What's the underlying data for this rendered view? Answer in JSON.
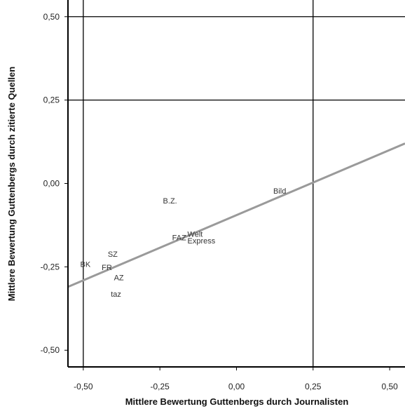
{
  "chart_data": {
    "type": "scatter",
    "title": "",
    "xlabel": "Mittlere Bewertung Guttenbergs durch Journalisten",
    "ylabel": "Mittlere Bewertung Guttenbergs durch zitierte Quellen",
    "xlim": [
      -0.55,
      0.55
    ],
    "ylim": [
      -0.55,
      0.55
    ],
    "x_ticks": [
      -0.5,
      -0.25,
      0.0,
      0.25,
      0.5
    ],
    "x_tick_labels": [
      "-0,50",
      "-0,25",
      "0,00",
      "0,25",
      "0,50"
    ],
    "y_ticks": [
      -0.5,
      -0.25,
      0.0,
      0.25,
      0.5
    ],
    "y_tick_labels": [
      "-0,50",
      "-0,25",
      "0,00",
      "0,25",
      "0,50"
    ],
    "reference_lines": {
      "x": [
        -0.5,
        0.25
      ],
      "y": [
        0.5,
        0.25
      ]
    },
    "grid": false,
    "points": [
      {
        "label": "BK",
        "x": -0.51,
        "y": -0.25
      },
      {
        "label": "FR",
        "x": -0.44,
        "y": -0.26
      },
      {
        "label": "SZ",
        "x": -0.42,
        "y": -0.22
      },
      {
        "label": "AZ",
        "x": -0.4,
        "y": -0.29
      },
      {
        "label": "taz",
        "x": -0.41,
        "y": -0.34
      },
      {
        "label": "B.Z.",
        "x": -0.24,
        "y": -0.06
      },
      {
        "label": "FAZ",
        "x": -0.21,
        "y": -0.17
      },
      {
        "label": "Welt",
        "x": -0.16,
        "y": -0.16
      },
      {
        "label": "Express",
        "x": -0.16,
        "y": -0.18
      },
      {
        "label": "Bild",
        "x": 0.12,
        "y": -0.03
      }
    ],
    "regression_line": {
      "x": [
        -0.55,
        0.55
      ],
      "y": [
        -0.31,
        0.12
      ]
    }
  }
}
